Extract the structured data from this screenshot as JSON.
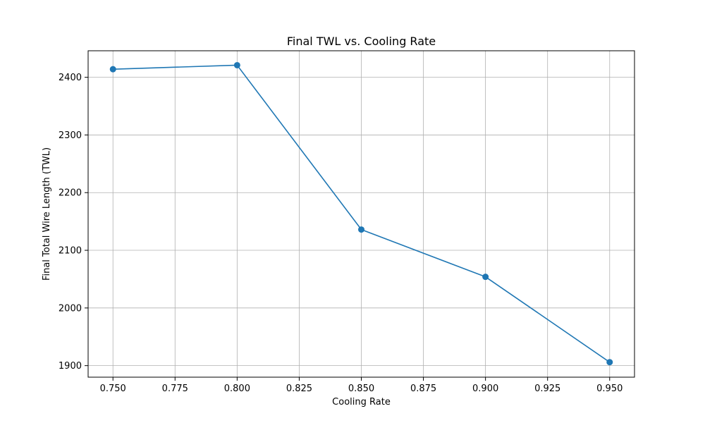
{
  "chart_data": {
    "type": "line",
    "title": "Final TWL vs. Cooling Rate",
    "xlabel": "Cooling Rate",
    "ylabel": "Final Total Wire Length (TWL)",
    "xlim": [
      0.74,
      0.96
    ],
    "ylim": [
      1880,
      2446
    ],
    "grid": true,
    "x_ticks": [
      0.75,
      0.775,
      0.8,
      0.825,
      0.85,
      0.875,
      0.9,
      0.925,
      0.95
    ],
    "x_tick_labels": [
      "0.750",
      "0.775",
      "0.800",
      "0.825",
      "0.850",
      "0.875",
      "0.900",
      "0.925",
      "0.950"
    ],
    "y_ticks": [
      1900,
      2000,
      2100,
      2200,
      2300,
      2400
    ],
    "y_tick_labels": [
      "1900",
      "2000",
      "2100",
      "2200",
      "2300",
      "2400"
    ],
    "series": [
      {
        "color": "#1f77b4",
        "marker": "circle",
        "x": [
          0.75,
          0.8,
          0.85,
          0.9,
          0.95
        ],
        "y": [
          2414,
          2421,
          2136,
          2054,
          1906
        ]
      }
    ]
  }
}
